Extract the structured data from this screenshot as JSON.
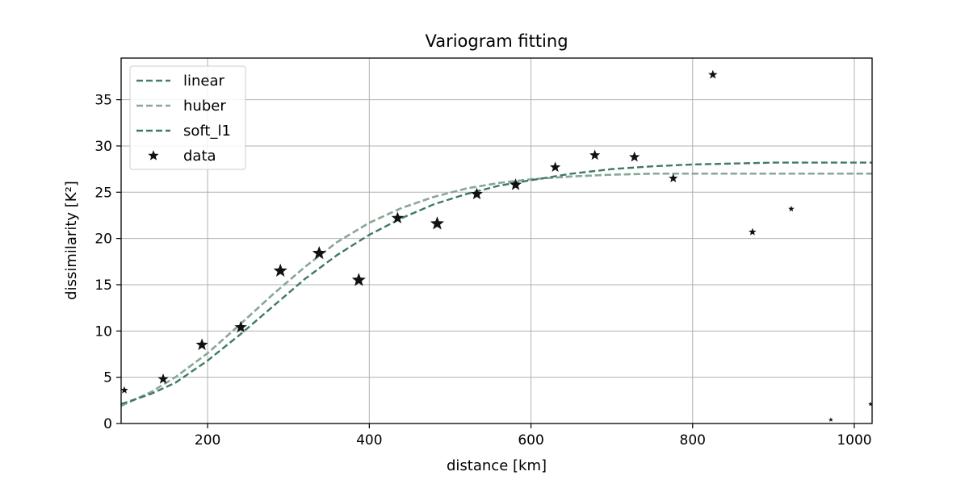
{
  "chart_data": {
    "type": "scatter",
    "title": "Variogram fitting",
    "xlabel": "distance [km]",
    "ylabel": "dissimilarity [K²]",
    "xlim": [
      93,
      1022
    ],
    "ylim": [
      0,
      39.5
    ],
    "xticks": [
      200,
      400,
      600,
      800,
      1000
    ],
    "yticks": [
      0,
      5,
      10,
      15,
      20,
      25,
      30,
      35
    ],
    "grid": true,
    "legend_position": "top-left",
    "series": [
      {
        "name": "linear",
        "kind": "line",
        "style": "dashed",
        "color": "#44806a",
        "x": [
          93,
          130,
          160,
          200,
          240,
          280,
          320,
          360,
          400,
          440,
          480,
          520,
          560,
          600,
          650,
          700,
          750,
          800,
          850,
          900,
          950,
          1000,
          1022
        ],
        "y": [
          1.9,
          3.4,
          5.0,
          7.6,
          10.7,
          13.9,
          16.9,
          19.6,
          21.7,
          23.3,
          24.5,
          25.4,
          26.0,
          26.4,
          26.7,
          26.9,
          27.0,
          27.0,
          27.0,
          27.0,
          27.0,
          27.0,
          27.0
        ]
      },
      {
        "name": "huber",
        "kind": "line",
        "style": "dashed",
        "color": "#8aa893",
        "x": [
          93,
          130,
          160,
          200,
          240,
          280,
          320,
          360,
          400,
          440,
          480,
          520,
          560,
          600,
          650,
          700,
          750,
          800,
          850,
          900,
          950,
          1000,
          1022
        ],
        "y": [
          1.9,
          3.4,
          5.0,
          7.6,
          10.7,
          13.9,
          16.9,
          19.6,
          21.7,
          23.3,
          24.5,
          25.4,
          26.0,
          26.4,
          26.7,
          26.9,
          27.0,
          27.0,
          27.0,
          27.0,
          27.0,
          27.0,
          27.0
        ]
      },
      {
        "name": "soft_l1",
        "kind": "line",
        "style": "dashed",
        "color": "#3d7a64",
        "x": [
          93,
          130,
          160,
          200,
          240,
          280,
          320,
          360,
          400,
          440,
          480,
          520,
          560,
          600,
          650,
          700,
          750,
          800,
          850,
          900,
          950,
          1000,
          1022
        ],
        "y": [
          2.1,
          3.2,
          4.4,
          6.8,
          9.6,
          12.6,
          15.6,
          18.2,
          20.4,
          22.2,
          23.7,
          24.8,
          25.7,
          26.3,
          27.0,
          27.5,
          27.8,
          28.0,
          28.1,
          28.2,
          28.2,
          28.2,
          28.2
        ]
      },
      {
        "name": "data",
        "kind": "scatter",
        "marker": "star",
        "color": "#111111",
        "x": [
          97,
          145,
          193,
          241,
          290,
          338,
          387,
          435,
          484,
          533,
          581,
          630,
          679,
          728,
          776,
          825,
          874,
          922,
          971,
          1020
        ],
        "y": [
          3.6,
          4.8,
          8.5,
          10.4,
          16.5,
          18.4,
          15.5,
          22.2,
          21.6,
          24.8,
          25.8,
          27.7,
          29.0,
          28.8,
          26.5,
          37.7,
          20.7,
          23.2,
          0.4,
          2.1
        ],
        "size": [
          5,
          7,
          8,
          8,
          9,
          9,
          9,
          8,
          9,
          8,
          8,
          7,
          7,
          7,
          6,
          6,
          5,
          4,
          3,
          3
        ]
      }
    ]
  }
}
